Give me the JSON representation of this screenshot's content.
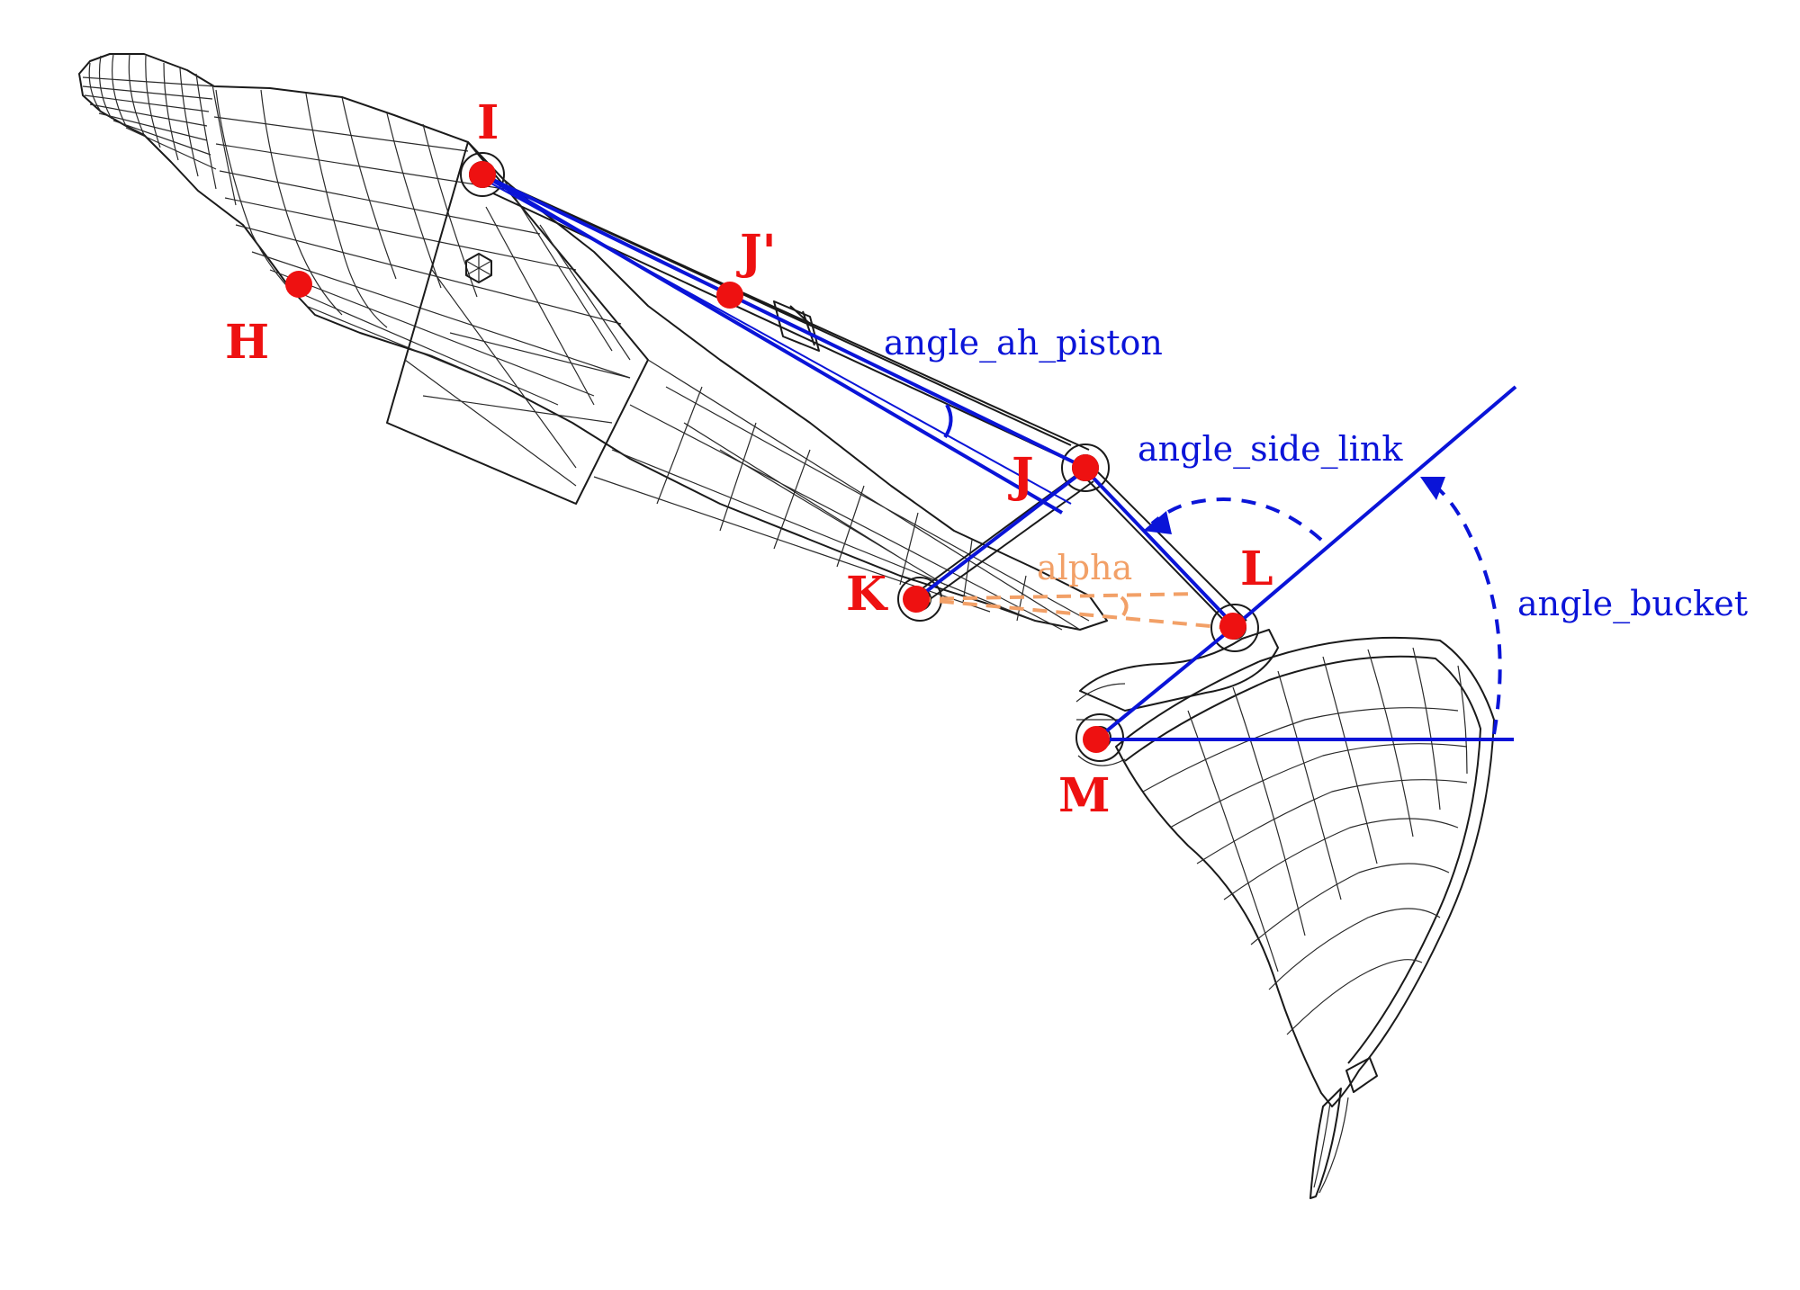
{
  "points": {
    "H": "H",
    "I": "I",
    "J_prime": "J'",
    "J": "J",
    "K": "K",
    "L": "L",
    "M": "M"
  },
  "angles": {
    "ah_piston": "angle_ah_piston",
    "side_link": "angle_side_link",
    "bucket": "angle_bucket",
    "alpha": "alpha"
  },
  "colors": {
    "points": "#ee1111",
    "angle_lines": "#0a14d8",
    "alpha": "#f2a067",
    "wireframe": "#1a1a1a"
  }
}
